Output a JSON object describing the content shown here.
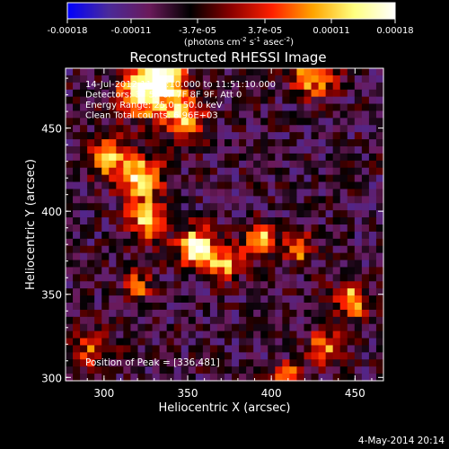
{
  "chart_data": {
    "type": "heatmap",
    "title": "Reconstructed RHESSI Image",
    "xlabel": "Heliocentric X (arcsec)",
    "ylabel": "Heliocentric Y (arcsec)",
    "xlim": [
      277,
      467
    ],
    "ylim": [
      298,
      486
    ],
    "x_ticks": [
      "300",
      "350",
      "400",
      "450"
    ],
    "y_ticks": [
      "300",
      "350",
      "400",
      "450"
    ],
    "colorbar": {
      "range": [
        -0.00018,
        0.00018
      ],
      "tick_values": [
        -0.00018,
        -0.00011,
        -3.7e-05,
        3.7e-05,
        0.00011,
        0.00018
      ],
      "tick_labels": [
        "-0.00018",
        "-0.00011",
        "-3.7e-05",
        "3.7e-05",
        "0.00011",
        "0.00018"
      ],
      "unit_label": "(photons cm-2 s-1 asec-2)",
      "colors": [
        "#0000ff",
        "#4a2a9a",
        "#6a1a5a",
        "#000000",
        "#8b0000",
        "#ff2000",
        "#ffa500",
        "#ffff80",
        "#ffffff"
      ]
    },
    "annotations": [
      "14-Jul-2012 11:45:10.000 to 11:51:10.000",
      "Detectors: 3F 5F 6F 7F 8F 9F, Att 0",
      "Energy Range: 25.0 - 50.0 keV",
      "Clean     Total counts: 6.96E+03"
    ],
    "peak_label": "Position of Peak = [336,481]",
    "peak_position": [
      336,
      481
    ],
    "sources": [
      {
        "x": 336,
        "y": 481,
        "peak": 0.00018,
        "sigma": 9
      },
      {
        "x": 322,
        "y": 470,
        "peak": 0.00013,
        "sigma": 10
      },
      {
        "x": 348,
        "y": 458,
        "peak": 0.00011,
        "sigma": 9
      },
      {
        "x": 302,
        "y": 432,
        "peak": 0.00011,
        "sigma": 8
      },
      {
        "x": 322,
        "y": 420,
        "peak": 0.00013,
        "sigma": 9
      },
      {
        "x": 326,
        "y": 395,
        "peak": 0.00012,
        "sigma": 8
      },
      {
        "x": 355,
        "y": 378,
        "peak": 0.00017,
        "sigma": 8
      },
      {
        "x": 372,
        "y": 368,
        "peak": 9e-05,
        "sigma": 7
      },
      {
        "x": 394,
        "y": 382,
        "peak": 0.00011,
        "sigma": 7
      },
      {
        "x": 416,
        "y": 378,
        "peak": 9e-05,
        "sigma": 6
      },
      {
        "x": 425,
        "y": 482,
        "peak": 0.00011,
        "sigma": 9
      },
      {
        "x": 448,
        "y": 346,
        "peak": 0.00012,
        "sigma": 7
      },
      {
        "x": 432,
        "y": 318,
        "peak": 7e-05,
        "sigma": 7
      },
      {
        "x": 292,
        "y": 315,
        "peak": 5e-05,
        "sigma": 8
      },
      {
        "x": 320,
        "y": 355,
        "peak": 6e-05,
        "sigma": 6
      },
      {
        "x": 410,
        "y": 300,
        "peak": 8e-05,
        "sigma": 6
      }
    ],
    "background_level": -7e-05
  },
  "footer": {
    "date": "4-May-2014 20:14"
  }
}
